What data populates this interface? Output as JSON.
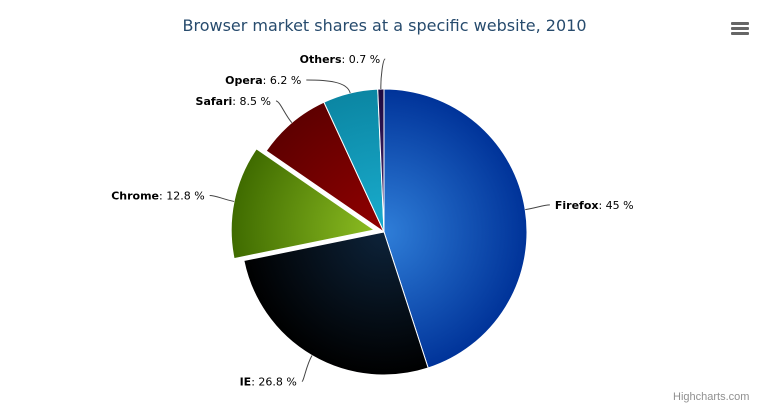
{
  "title": "Browser market shares at a specific website, 2010",
  "credit": "Highcharts.com",
  "menu_icon": "hamburger-menu-icon",
  "chart_data": {
    "type": "pie",
    "title": "Browser market shares at a specific website, 2010",
    "unit": "%",
    "slices": [
      {
        "name": "Firefox",
        "value": 45,
        "label": "45 %",
        "color": "#2f7ed8",
        "dark": "#003399"
      },
      {
        "name": "IE",
        "value": 26.8,
        "label": "26.8 %",
        "color": "#0d233a",
        "dark": "#000000"
      },
      {
        "name": "Chrome",
        "value": 12.8,
        "label": "12.8 %",
        "color": "#8bbc21",
        "dark": "#3f6b00",
        "sliced": true
      },
      {
        "name": "Safari",
        "value": 8.5,
        "label": "8.5 %",
        "color": "#910000",
        "dark": "#5e0000"
      },
      {
        "name": "Opera",
        "value": 6.2,
        "label": "6.2 %",
        "color": "#1aadce",
        "dark": "#0b86a3"
      },
      {
        "name": "Others",
        "value": 0.7,
        "label": "0.7 %",
        "color": "#492970",
        "dark": "#1d0a40"
      }
    ]
  }
}
